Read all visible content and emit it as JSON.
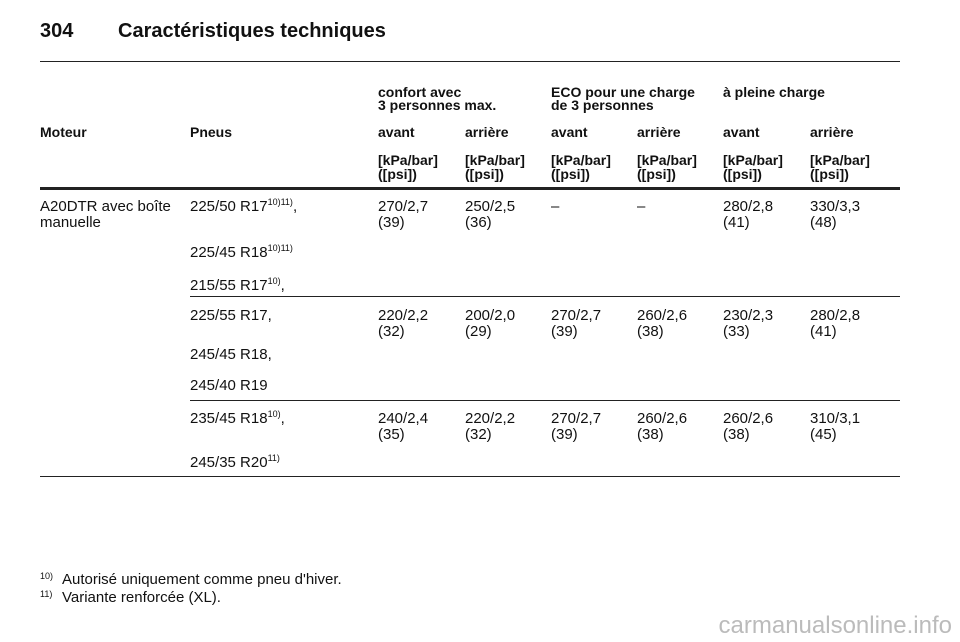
{
  "header": {
    "page": "304",
    "title": "Caractéristiques techniques"
  },
  "table": {
    "groups": [
      {
        "column": 2,
        "lines": [
          "confort avec",
          "3 personnes max."
        ]
      },
      {
        "column": 4,
        "lines": [
          "ECO pour une charge",
          "de 3 personnes"
        ]
      },
      {
        "column": 6,
        "lines": [
          "à pleine charge"
        ]
      }
    ],
    "columns": [
      "Moteur",
      "Pneus",
      "avant",
      "arrière",
      "avant",
      "arrière",
      "avant",
      "arrière"
    ],
    "units": [
      [
        "[kPa/bar]",
        "([psi])"
      ],
      [
        "[kPa/bar]",
        "([psi])"
      ],
      [
        "[kPa/bar]",
        "([psi])"
      ],
      [
        "[kPa/bar]",
        "([psi])"
      ],
      [
        "[kPa/bar]",
        "([psi])"
      ],
      [
        "[kPa/bar]",
        "([psi])"
      ]
    ],
    "rows": [
      {
        "engine": [
          "A20DTR avec boîte",
          "manuelle"
        ],
        "tires": [
          {
            "size": "225/50 R17",
            "note": "10)11)",
            "punct": ","
          },
          {
            "size": "225/45 R18",
            "note": "10)11)"
          },
          {
            "size": "215/55 R17",
            "note": "10)",
            "punct": ","
          }
        ],
        "values": [
          [
            "270/2,7",
            "(39)"
          ],
          [
            "250/2,5",
            "(36)"
          ],
          [
            "–"
          ],
          [
            "–"
          ],
          [
            "280/2,8",
            "(41)"
          ],
          [
            "330/3,3",
            "(48)"
          ]
        ]
      },
      {
        "tires": [
          {
            "size": "225/55 R17,"
          },
          {
            "size": "245/45 R18,"
          },
          {
            "size": "245/40 R19"
          }
        ],
        "values": [
          [
            "220/2,2",
            "(32)"
          ],
          [
            "200/2,0",
            "(29)"
          ],
          [
            "270/2,7",
            "(39)"
          ],
          [
            "260/2,6",
            "(38)"
          ],
          [
            "230/2,3",
            "(33)"
          ],
          [
            "280/2,8",
            "(41)"
          ]
        ]
      },
      {
        "tires": [
          {
            "size": "235/45 R18",
            "note": "10)",
            "punct": ","
          },
          {
            "size": "245/35 R20",
            "note": "11)"
          }
        ],
        "values": [
          [
            "240/2,4",
            "(35)"
          ],
          [
            "220/2,2",
            "(32)"
          ],
          [
            "270/2,7",
            "(39)"
          ],
          [
            "260/2,6",
            "(38)"
          ],
          [
            "260/2,6",
            "(38)"
          ],
          [
            "310/3,1",
            "(45)"
          ]
        ]
      }
    ]
  },
  "footnotes": [
    {
      "mark": "10)",
      "text": "Autorisé uniquement comme pneu d'hiver."
    },
    {
      "mark": "11)",
      "text": "Variante renforcée (XL)."
    }
  ],
  "watermark": "carmanualsonline.info"
}
